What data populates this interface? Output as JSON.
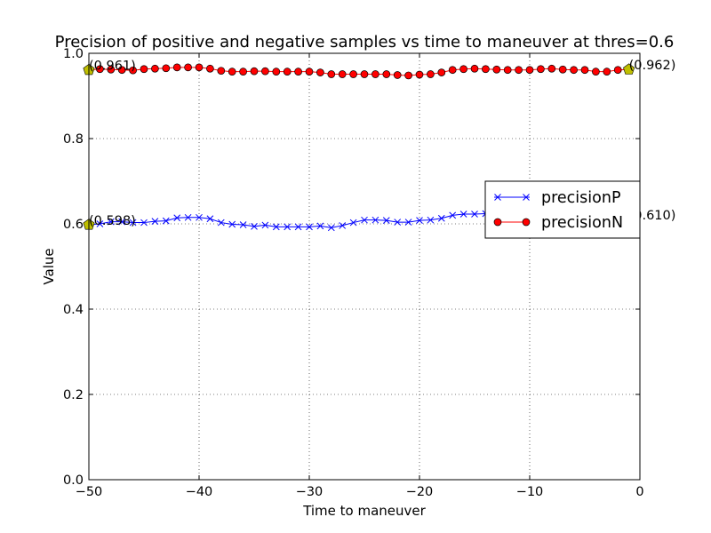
{
  "chart_data": {
    "type": "line",
    "title": "Precision of positive and negative samples vs time to maneuver at thres=0.6",
    "xlabel": "Time to maneuver",
    "ylabel": "Value",
    "xlim": [
      -50,
      0
    ],
    "ylim": [
      0.0,
      1.0
    ],
    "xticks": [
      -50,
      -40,
      -30,
      -20,
      -10,
      0
    ],
    "xtick_labels": [
      "−50",
      "−40",
      "−30",
      "−20",
      "−10",
      "0"
    ],
    "yticks": [
      0.0,
      0.2,
      0.4,
      0.6,
      0.8,
      1.0
    ],
    "ytick_labels": [
      "0.0",
      "0.2",
      "0.4",
      "0.6",
      "0.8",
      "1.0"
    ],
    "grid": true,
    "legend_position": "center-right",
    "x": [
      -50,
      -49,
      -48,
      -47,
      -46,
      -45,
      -44,
      -43,
      -42,
      -41,
      -40,
      -39,
      -38,
      -37,
      -36,
      -35,
      -34,
      -33,
      -32,
      -31,
      -30,
      -29,
      -28,
      -27,
      -26,
      -25,
      -24,
      -23,
      -22,
      -21,
      -20,
      -19,
      -18,
      -17,
      -16,
      -15,
      -14,
      -13,
      -12,
      -11,
      -10,
      -9,
      -8,
      -7,
      -6,
      -5,
      -4,
      -3,
      -2,
      -1
    ],
    "series": [
      {
        "name": "precisionP",
        "color": "#0000ff",
        "marker": "x",
        "values": [
          0.598,
          0.6,
          0.605,
          0.605,
          0.603,
          0.603,
          0.606,
          0.607,
          0.614,
          0.615,
          0.615,
          0.612,
          0.603,
          0.599,
          0.598,
          0.594,
          0.597,
          0.593,
          0.593,
          0.593,
          0.593,
          0.595,
          0.591,
          0.596,
          0.603,
          0.609,
          0.609,
          0.608,
          0.604,
          0.604,
          0.608,
          0.609,
          0.613,
          0.62,
          0.623,
          0.623,
          0.624,
          0.622,
          0.621,
          0.621,
          0.621,
          0.621,
          0.621,
          0.62,
          0.619,
          0.618,
          0.617,
          0.615,
          0.612,
          0.61
        ]
      },
      {
        "name": "precisionN",
        "color": "#ff0000",
        "marker": "o",
        "values": [
          0.961,
          0.963,
          0.962,
          0.961,
          0.96,
          0.963,
          0.964,
          0.965,
          0.967,
          0.967,
          0.967,
          0.964,
          0.959,
          0.957,
          0.957,
          0.958,
          0.958,
          0.957,
          0.957,
          0.957,
          0.957,
          0.955,
          0.951,
          0.951,
          0.951,
          0.951,
          0.951,
          0.951,
          0.949,
          0.948,
          0.95,
          0.951,
          0.955,
          0.961,
          0.963,
          0.964,
          0.963,
          0.962,
          0.961,
          0.961,
          0.961,
          0.963,
          0.964,
          0.962,
          0.961,
          0.961,
          0.957,
          0.957,
          0.961,
          0.962
        ]
      }
    ],
    "highlight_points": [
      {
        "x": -50,
        "y": 0.961,
        "label": "(0.961)",
        "color": "#bfbf00"
      },
      {
        "x": -1,
        "y": 0.962,
        "label": "(0.962)",
        "color": "#bfbf00"
      },
      {
        "x": -50,
        "y": 0.598,
        "label": "(0.598)",
        "color": "#bfbf00"
      },
      {
        "x": -1,
        "y": 0.61,
        "label": "(0.610)",
        "color": "#bfbf00"
      }
    ]
  }
}
